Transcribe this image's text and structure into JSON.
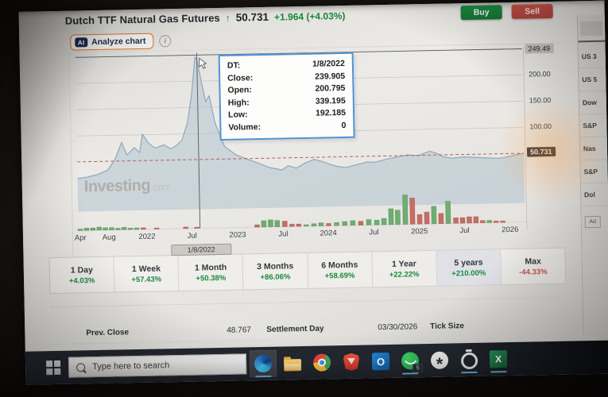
{
  "header": {
    "title": "Dutch TTF Natural Gas Futures",
    "arrow": "↑",
    "price": "50.731",
    "change": "+1.964 (+4.03%)",
    "buy_label": "Buy",
    "sell_label": "Sell"
  },
  "analyze": {
    "badge": "AI",
    "label": "Analyze chart"
  },
  "watermark": {
    "bold": "Investing",
    "suffix": ".com"
  },
  "tooltip": {
    "rows": [
      {
        "label": "DT:",
        "value": "1/8/2022"
      },
      {
        "label": "Close:",
        "value": "239.905"
      },
      {
        "label": "Open:",
        "value": "200.795"
      },
      {
        "label": "High:",
        "value": "339.195"
      },
      {
        "label": "Low:",
        "value": "192.185"
      },
      {
        "label": "Volume:",
        "value": "0"
      }
    ]
  },
  "chart_data": {
    "type": "area",
    "title": "Dutch TTF Natural Gas Futures price, 5 years (Apr 2021 - Mar 2026)",
    "ylabel": "Price",
    "ylim": [
      0,
      260
    ],
    "y_ticks": [
      {
        "value": 249.49,
        "label": "249.49",
        "crosshair": true
      },
      {
        "value": 200,
        "label": "200.00"
      },
      {
        "value": 150,
        "label": "150.00"
      },
      {
        "value": 100,
        "label": "100.00"
      }
    ],
    "current_price": {
      "value": 50.731,
      "label": "50.731"
    },
    "x_ticks": [
      {
        "f": 0.004,
        "label": "Apr"
      },
      {
        "f": 0.068,
        "label": "Aug"
      },
      {
        "f": 0.153,
        "label": "2022"
      },
      {
        "f": 0.254,
        "label": "Jul"
      },
      {
        "f": 0.356,
        "label": "2023"
      },
      {
        "f": 0.458,
        "label": "Jul"
      },
      {
        "f": 0.559,
        "label": "2024"
      },
      {
        "f": 0.661,
        "label": "Jul"
      },
      {
        "f": 0.763,
        "label": "2025"
      },
      {
        "f": 0.864,
        "label": "Jul"
      },
      {
        "f": 0.966,
        "label": "2026"
      }
    ],
    "crosshair": {
      "f": 0.272,
      "y_value": 249.49,
      "date_label": "1/8/2022"
    },
    "price_series": [
      [
        0.0,
        19
      ],
      [
        0.02,
        21
      ],
      [
        0.045,
        26
      ],
      [
        0.068,
        34
      ],
      [
        0.085,
        55
      ],
      [
        0.1,
        86
      ],
      [
        0.112,
        62
      ],
      [
        0.128,
        76
      ],
      [
        0.14,
        66
      ],
      [
        0.147,
        101
      ],
      [
        0.16,
        84
      ],
      [
        0.175,
        74
      ],
      [
        0.195,
        80
      ],
      [
        0.21,
        72
      ],
      [
        0.222,
        78
      ],
      [
        0.235,
        88
      ],
      [
        0.248,
        120
      ],
      [
        0.258,
        170
      ],
      [
        0.268,
        246
      ],
      [
        0.272,
        240
      ],
      [
        0.282,
        195
      ],
      [
        0.29,
        160
      ],
      [
        0.298,
        172
      ],
      [
        0.31,
        120
      ],
      [
        0.33,
        75
      ],
      [
        0.356,
        58
      ],
      [
        0.38,
        50
      ],
      [
        0.405,
        42
      ],
      [
        0.43,
        33
      ],
      [
        0.458,
        28
      ],
      [
        0.472,
        36
      ],
      [
        0.49,
        31
      ],
      [
        0.51,
        40
      ],
      [
        0.53,
        47
      ],
      [
        0.55,
        42
      ],
      [
        0.565,
        37
      ],
      [
        0.58,
        33
      ],
      [
        0.6,
        30
      ],
      [
        0.625,
        35
      ],
      [
        0.65,
        40
      ],
      [
        0.665,
        39
      ],
      [
        0.68,
        42
      ],
      [
        0.7,
        46
      ],
      [
        0.72,
        49
      ],
      [
        0.74,
        52
      ],
      [
        0.763,
        50
      ],
      [
        0.778,
        55
      ],
      [
        0.79,
        58
      ],
      [
        0.805,
        54
      ],
      [
        0.82,
        47
      ],
      [
        0.84,
        44
      ],
      [
        0.864,
        46
      ],
      [
        0.885,
        45
      ],
      [
        0.905,
        44
      ],
      [
        0.925,
        43
      ],
      [
        0.945,
        42
      ],
      [
        0.965,
        45
      ],
      [
        0.982,
        48
      ],
      [
        1.0,
        50.731
      ]
    ],
    "volume_bars": [
      [
        0.004,
        2,
        "g"
      ],
      [
        0.018,
        3,
        "g"
      ],
      [
        0.032,
        3,
        "g"
      ],
      [
        0.046,
        4,
        "g"
      ],
      [
        0.06,
        3,
        "g"
      ],
      [
        0.074,
        3,
        "g"
      ],
      [
        0.088,
        2,
        "g"
      ],
      [
        0.102,
        3,
        "g"
      ],
      [
        0.116,
        2,
        "g"
      ],
      [
        0.13,
        2,
        "g"
      ],
      [
        0.145,
        2,
        "r"
      ],
      [
        0.175,
        1.5,
        "r"
      ],
      [
        0.24,
        2,
        "r"
      ],
      [
        0.265,
        1.5,
        "r"
      ],
      [
        0.4,
        3,
        "r"
      ],
      [
        0.415,
        8,
        "g"
      ],
      [
        0.43,
        9,
        "g"
      ],
      [
        0.445,
        8,
        "g"
      ],
      [
        0.462,
        7,
        "r"
      ],
      [
        0.478,
        3,
        "r"
      ],
      [
        0.493,
        3,
        "r"
      ],
      [
        0.51,
        2,
        "g"
      ],
      [
        0.527,
        3,
        "g"
      ],
      [
        0.543,
        4,
        "g"
      ],
      [
        0.56,
        3,
        "r"
      ],
      [
        0.578,
        4,
        "g"
      ],
      [
        0.596,
        5,
        "g"
      ],
      [
        0.614,
        6,
        "g"
      ],
      [
        0.632,
        5,
        "r"
      ],
      [
        0.65,
        7,
        "g"
      ],
      [
        0.668,
        6,
        "g"
      ],
      [
        0.684,
        8,
        "g"
      ],
      [
        0.7,
        20,
        "g"
      ],
      [
        0.715,
        18,
        "g"
      ],
      [
        0.732,
        37,
        "g"
      ],
      [
        0.748,
        33,
        "r"
      ],
      [
        0.764,
        12,
        "r"
      ],
      [
        0.78,
        15,
        "r"
      ],
      [
        0.796,
        22,
        "g"
      ],
      [
        0.812,
        13,
        "r"
      ],
      [
        0.828,
        28,
        "g"
      ],
      [
        0.845,
        7,
        "r"
      ],
      [
        0.86,
        7,
        "r"
      ],
      [
        0.875,
        8,
        "r"
      ],
      [
        0.89,
        8,
        "r"
      ],
      [
        0.905,
        3,
        "r"
      ],
      [
        0.92,
        3,
        "g"
      ],
      [
        0.935,
        2,
        "r"
      ],
      [
        0.95,
        2,
        "r"
      ]
    ],
    "colors": {
      "area_fill": "rgba(176,195,208,0.55)",
      "area_line": "#8fa8b8",
      "dashed": "#b4625c",
      "vol_up": "#6fae72",
      "vol_down": "#c76d62"
    },
    "legend": [],
    "grid": "horizontal"
  },
  "periods": [
    {
      "label": "1 Day",
      "change": "+4.03%",
      "dir": "up",
      "selected": false
    },
    {
      "label": "1 Week",
      "change": "+57.43%",
      "dir": "up",
      "selected": false
    },
    {
      "label": "1 Month",
      "change": "+50.38%",
      "dir": "up",
      "selected": false
    },
    {
      "label": "3 Months",
      "change": "+86.06%",
      "dir": "up",
      "selected": false
    },
    {
      "label": "6 Months",
      "change": "+58.69%",
      "dir": "up",
      "selected": false
    },
    {
      "label": "1 Year",
      "change": "+22.22%",
      "dir": "up",
      "selected": false
    },
    {
      "label": "5 years",
      "change": "+210.00%",
      "dir": "up",
      "selected": true
    },
    {
      "label": "Max",
      "change": "-44.33%",
      "dir": "down",
      "selected": false
    }
  ],
  "stats": [
    {
      "label": "Prev. Close",
      "value": "48.767"
    },
    {
      "label": "Settlement Day",
      "value": "03/30/2026"
    },
    {
      "label": "Tick Size",
      "value": ""
    }
  ],
  "sidebar": {
    "items": [
      "US 3",
      "US 5",
      "Dow",
      "S&P",
      "Nas",
      "S&P",
      "Dol"
    ],
    "ad_label": "Ad"
  },
  "taskbar": {
    "search_placeholder": "Type here to search",
    "whatsapp_badge": "5",
    "icons": [
      "windows-start",
      "edge",
      "file-explorer",
      "chrome",
      "brave",
      "outlook",
      "whatsapp",
      "chatgpt",
      "ring-app",
      "excel"
    ]
  }
}
